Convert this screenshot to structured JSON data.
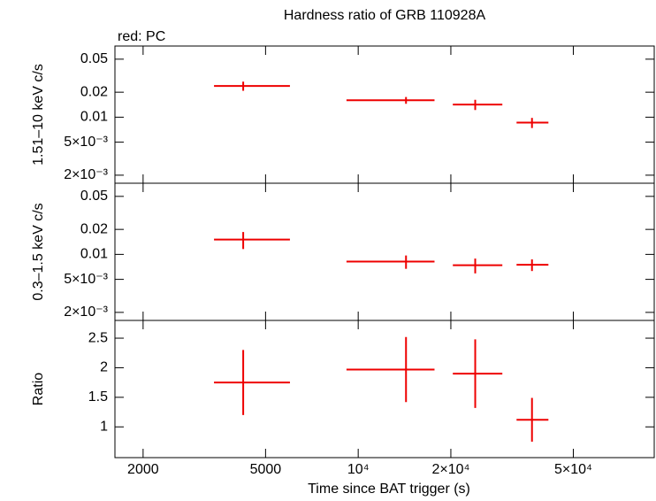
{
  "chart_data": [
    {
      "type": "scatter",
      "title": "Hardness ratio of GRB 110928A",
      "annotation": "red: PC",
      "ylabel": "1.51–10 keV c/s",
      "log_y": true,
      "ylim": [
        0.0016,
        0.072
      ],
      "yticks": [
        0.05,
        0.02,
        0.01,
        {
          "value": 0.005,
          "label": "5×10⁻³"
        },
        {
          "value": 0.002,
          "label": "2×10⁻³"
        }
      ],
      "series": [
        {
          "color": "#ee0000",
          "x": [
            4230,
            14300,
            24000,
            36700
          ],
          "x_min": [
            3400,
            9160,
            20300,
            32700
          ],
          "x_max": [
            6000,
            17700,
            29400,
            41500
          ],
          "values": [
            0.0238,
            0.016,
            0.0142,
            0.0086
          ],
          "y_err": [
            0.003,
            0.0015,
            0.002,
            0.0012
          ]
        }
      ]
    },
    {
      "type": "scatter",
      "ylabel": "0.3–1.5 keV c/s",
      "log_y": true,
      "ylim": [
        0.0016,
        0.072
      ],
      "yticks": [
        0.05,
        0.02,
        0.01,
        {
          "value": 0.005,
          "label": "5×10⁻³"
        },
        {
          "value": 0.002,
          "label": "2×10⁻³"
        }
      ],
      "series": [
        {
          "color": "#ee0000",
          "x": [
            4230,
            14300,
            24000,
            36700
          ],
          "x_min": [
            3400,
            9160,
            20300,
            32700
          ],
          "x_max": [
            6000,
            17700,
            29400,
            41500
          ],
          "values": [
            0.0151,
            0.0082,
            0.0074,
            0.0075
          ],
          "y_err": [
            0.0035,
            0.0015,
            0.0015,
            0.0012
          ]
        }
      ]
    },
    {
      "type": "scatter",
      "ylabel": "Ratio",
      "xlabel": "Time since BAT trigger (s)",
      "log_x": true,
      "xlim": [
        1620,
        91600
      ],
      "xticks": [
        2000,
        5000,
        {
          "value": 10000,
          "label": "10⁴"
        },
        {
          "value": 20000,
          "label": "2×10⁴"
        },
        {
          "value": 50000,
          "label": "5×10⁴"
        }
      ],
      "log_y": false,
      "ylim": [
        0.48,
        2.8
      ],
      "yticks": [
        2.5,
        2,
        1.5,
        1
      ],
      "series": [
        {
          "color": "#ee0000",
          "x": [
            4230,
            14300,
            24000,
            36700
          ],
          "x_min": [
            3400,
            9160,
            20300,
            32700
          ],
          "x_max": [
            6000,
            17700,
            29400,
            41500
          ],
          "values": [
            1.75,
            1.97,
            1.9,
            1.12
          ],
          "y_err": [
            0.55,
            0.55,
            0.58,
            0.37
          ]
        }
      ]
    }
  ]
}
